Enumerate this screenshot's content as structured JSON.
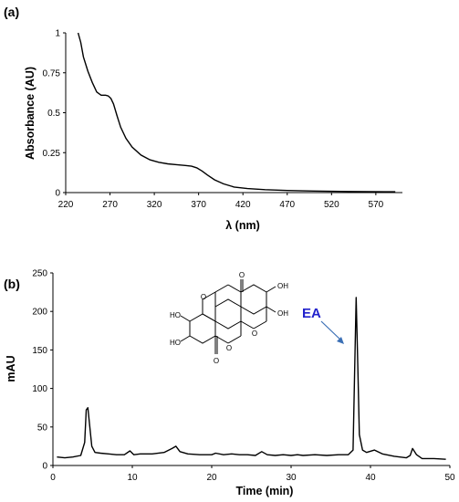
{
  "panels": {
    "a_label": "(a)",
    "b_label": "(b)"
  },
  "colors": {
    "line": "#000000",
    "annotation": "#2222cc",
    "arrow": "#3a6fb5"
  },
  "chart_data": [
    {
      "type": "line",
      "panel": "(a)",
      "xlabel": "λ (nm)",
      "ylabel": "Absorbance (AU)",
      "xlim": [
        220,
        600
      ],
      "ylim": [
        0,
        1
      ],
      "xticks": [
        220,
        270,
        320,
        370,
        420,
        470,
        520,
        570
      ],
      "xtick_labels": [
        "220",
        "270",
        "320",
        "370",
        "420",
        "470",
        "520",
        "570"
      ],
      "yticks": [
        0,
        0.25,
        0.5,
        0.75,
        1
      ],
      "ytick_labels": [
        "0",
        "0.25",
        "0.5",
        "0.75",
        "1"
      ],
      "grid": false,
      "series": [
        {
          "x": [
            234,
            237,
            240,
            245,
            250,
            255,
            260,
            265,
            268,
            271,
            274,
            278,
            282,
            288,
            295,
            305,
            315,
            325,
            335,
            345,
            355,
            362,
            368,
            374,
            380,
            388,
            398,
            410,
            425,
            445,
            470,
            500,
            540,
            580,
            592
          ],
          "y": [
            1.0,
            0.94,
            0.85,
            0.76,
            0.69,
            0.63,
            0.61,
            0.61,
            0.605,
            0.59,
            0.555,
            0.48,
            0.41,
            0.34,
            0.285,
            0.235,
            0.205,
            0.19,
            0.18,
            0.175,
            0.17,
            0.165,
            0.155,
            0.135,
            0.11,
            0.08,
            0.055,
            0.035,
            0.025,
            0.018,
            0.013,
            0.01,
            0.007,
            0.005,
            0.005
          ]
        }
      ]
    },
    {
      "type": "line",
      "panel": "(b)",
      "xlabel": "Time (min)",
      "ylabel": "mAU",
      "xlim": [
        0,
        50
      ],
      "ylim": [
        0,
        250
      ],
      "xticks": [
        0,
        10,
        20,
        30,
        40,
        50
      ],
      "xtick_labels": [
        "0",
        "10",
        "20",
        "30",
        "40",
        "50"
      ],
      "yticks": [
        0,
        50,
        100,
        150,
        200,
        250
      ],
      "ytick_labels": [
        "0",
        "50",
        "100",
        "150",
        "200",
        "250"
      ],
      "grid": false,
      "annotation": {
        "text": "EA",
        "x": 38.2,
        "y": 218
      },
      "series": [
        {
          "x": [
            0.5,
            1.5,
            2.5,
            3.5,
            4.0,
            4.2,
            4.4,
            4.6,
            4.9,
            5.3,
            6.0,
            7.0,
            8.0,
            9.0,
            9.7,
            10.2,
            11.0,
            12.5,
            14.0,
            15.0,
            15.5,
            16.0,
            17.0,
            18.5,
            20.0,
            20.5,
            21.5,
            22.5,
            23.5,
            24.5,
            25.5,
            26.3,
            27.0,
            28.0,
            29.0,
            30.0,
            30.8,
            31.5,
            33.0,
            34.5,
            36.0,
            37.2,
            37.8,
            38.0,
            38.2,
            38.4,
            38.6,
            39.0,
            39.5,
            40.5,
            41.5,
            43.0,
            44.5,
            45.0,
            45.3,
            45.8,
            46.5,
            48.0,
            49.5
          ],
          "y": [
            11,
            10,
            11,
            13,
            30,
            72,
            75,
            55,
            25,
            17,
            16,
            15,
            14,
            14,
            19,
            14,
            15,
            15,
            17,
            22,
            25,
            18,
            15,
            14,
            14,
            16,
            14,
            15,
            14,
            14,
            13,
            18,
            14,
            13,
            14,
            13,
            14,
            13,
            14,
            13,
            14,
            14,
            20,
            120,
            218,
            130,
            40,
            20,
            17,
            20,
            15,
            12,
            10,
            13,
            22,
            14,
            9,
            9,
            8
          ]
        }
      ]
    }
  ]
}
